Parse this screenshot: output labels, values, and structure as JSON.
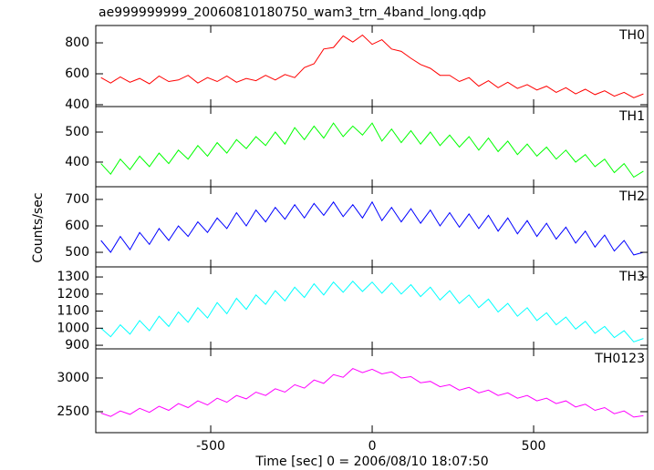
{
  "chart_data": [
    {
      "type": "line",
      "title": "ae999999999_20060810180750_wam3_trn_4band_long.qdp",
      "x": [
        -840,
        -810,
        -780,
        -750,
        -720,
        -690,
        -660,
        -630,
        -600,
        -570,
        -540,
        -510,
        -480,
        -450,
        -420,
        -390,
        -360,
        -330,
        -300,
        -270,
        -240,
        -210,
        -180,
        -150,
        -120,
        -90,
        -60,
        -30,
        0,
        30,
        60,
        90,
        120,
        150,
        180,
        210,
        240,
        270,
        300,
        330,
        360,
        390,
        420,
        450,
        480,
        510,
        540,
        570,
        600,
        630,
        660,
        690,
        720,
        750,
        780,
        810,
        840
      ],
      "series": [
        {
          "name": "TH0",
          "color": "#ff0000",
          "values": [
            575,
            540,
            580,
            545,
            570,
            535,
            585,
            550,
            560,
            590,
            540,
            575,
            550,
            585,
            545,
            570,
            555,
            590,
            560,
            595,
            575,
            640,
            665,
            760,
            770,
            845,
            805,
            850,
            790,
            820,
            760,
            745,
            700,
            660,
            635,
            590,
            590,
            550,
            575,
            520,
            555,
            510,
            545,
            505,
            530,
            495,
            520,
            480,
            510,
            470,
            500,
            465,
            490,
            455,
            480,
            445,
            470
          ]
        }
      ],
      "xlim": [
        -856,
        853
      ],
      "xticks": [
        -500,
        0,
        500
      ],
      "ylim": [
        388,
        912
      ],
      "yticks": [
        400,
        600,
        800
      ]
    },
    {
      "type": "line",
      "x": [
        -840,
        -810,
        -780,
        -750,
        -720,
        -690,
        -660,
        -630,
        -600,
        -570,
        -540,
        -510,
        -480,
        -450,
        -420,
        -390,
        -360,
        -330,
        -300,
        -270,
        -240,
        -210,
        -180,
        -150,
        -120,
        -90,
        -60,
        -30,
        0,
        30,
        60,
        90,
        120,
        150,
        180,
        210,
        240,
        270,
        300,
        330,
        360,
        390,
        420,
        450,
        480,
        510,
        540,
        570,
        600,
        630,
        660,
        690,
        720,
        750,
        780,
        810,
        840
      ],
      "series": [
        {
          "name": "TH1",
          "color": "#00ff00",
          "values": [
            395,
            360,
            410,
            375,
            420,
            385,
            430,
            395,
            440,
            410,
            455,
            420,
            465,
            430,
            475,
            445,
            485,
            455,
            500,
            460,
            515,
            475,
            520,
            480,
            530,
            485,
            520,
            490,
            530,
            470,
            510,
            465,
            505,
            460,
            500,
            455,
            490,
            450,
            485,
            440,
            480,
            435,
            470,
            425,
            460,
            420,
            450,
            410,
            440,
            400,
            425,
            385,
            410,
            365,
            395,
            350,
            370
          ]
        }
      ],
      "xlim": [
        -856,
        853
      ],
      "xticks": [
        -500,
        0,
        500
      ],
      "ylim": [
        318,
        585
      ],
      "yticks": [
        400,
        500
      ]
    },
    {
      "type": "line",
      "ylabel": "Counts/sec",
      "x": [
        -840,
        -810,
        -780,
        -750,
        -720,
        -690,
        -660,
        -630,
        -600,
        -570,
        -540,
        -510,
        -480,
        -450,
        -420,
        -390,
        -360,
        -330,
        -300,
        -270,
        -240,
        -210,
        -180,
        -150,
        -120,
        -90,
        -60,
        -30,
        0,
        30,
        60,
        90,
        120,
        150,
        180,
        210,
        240,
        270,
        300,
        330,
        360,
        390,
        420,
        450,
        480,
        510,
        540,
        570,
        600,
        630,
        660,
        690,
        720,
        750,
        780,
        810,
        840
      ],
      "series": [
        {
          "name": "TH2",
          "color": "#0000ff",
          "values": [
            545,
            500,
            560,
            510,
            575,
            530,
            590,
            545,
            600,
            560,
            615,
            575,
            630,
            590,
            650,
            600,
            660,
            615,
            670,
            625,
            680,
            630,
            685,
            640,
            690,
            635,
            680,
            630,
            690,
            620,
            670,
            615,
            665,
            610,
            660,
            600,
            650,
            595,
            645,
            590,
            640,
            580,
            630,
            570,
            620,
            560,
            610,
            550,
            595,
            535,
            580,
            520,
            565,
            505,
            545,
            490,
            500
          ]
        }
      ],
      "xlim": [
        -856,
        853
      ],
      "xticks": [
        -500,
        0,
        500
      ],
      "ylim": [
        445,
        748
      ],
      "yticks": [
        500,
        600,
        700
      ]
    },
    {
      "type": "line",
      "x": [
        -840,
        -810,
        -780,
        -750,
        -720,
        -690,
        -660,
        -630,
        -600,
        -570,
        -540,
        -510,
        -480,
        -450,
        -420,
        -390,
        -360,
        -330,
        -300,
        -270,
        -240,
        -210,
        -180,
        -150,
        -120,
        -90,
        -60,
        -30,
        0,
        30,
        60,
        90,
        120,
        150,
        180,
        210,
        240,
        270,
        300,
        330,
        360,
        390,
        420,
        450,
        480,
        510,
        540,
        570,
        600,
        630,
        660,
        690,
        720,
        750,
        780,
        810,
        840
      ],
      "series": [
        {
          "name": "TH3",
          "color": "#00ffff",
          "values": [
            1000,
            950,
            1020,
            965,
            1045,
            985,
            1070,
            1010,
            1095,
            1035,
            1120,
            1060,
            1150,
            1085,
            1175,
            1110,
            1195,
            1140,
            1220,
            1160,
            1240,
            1180,
            1260,
            1195,
            1270,
            1210,
            1275,
            1215,
            1270,
            1205,
            1265,
            1200,
            1255,
            1185,
            1240,
            1165,
            1220,
            1145,
            1195,
            1120,
            1170,
            1095,
            1145,
            1070,
            1120,
            1045,
            1090,
            1020,
            1065,
            995,
            1040,
            970,
            1010,
            945,
            985,
            920,
            940
          ]
        }
      ],
      "xlim": [
        -856,
        853
      ],
      "xticks": [
        -500,
        0,
        500
      ],
      "ylim": [
        879,
        1359
      ],
      "yticks": [
        900,
        1000,
        1100,
        1200,
        1300
      ]
    },
    {
      "type": "line",
      "xlabel": "Time [sec] 0 = 2006/08/10 18:07:50",
      "x": [
        -840,
        -810,
        -780,
        -750,
        -720,
        -690,
        -660,
        -630,
        -600,
        -570,
        -540,
        -510,
        -480,
        -450,
        -420,
        -390,
        -360,
        -330,
        -300,
        -270,
        -240,
        -210,
        -180,
        -150,
        -120,
        -90,
        -60,
        -30,
        0,
        30,
        60,
        90,
        120,
        150,
        180,
        210,
        240,
        270,
        300,
        330,
        360,
        390,
        420,
        450,
        480,
        510,
        540,
        570,
        600,
        630,
        660,
        690,
        720,
        750,
        780,
        810,
        840
      ],
      "series": [
        {
          "name": "TH0123",
          "color": "#ff00ff",
          "values": [
            2480,
            2430,
            2510,
            2460,
            2550,
            2490,
            2580,
            2520,
            2620,
            2560,
            2660,
            2600,
            2700,
            2640,
            2740,
            2690,
            2790,
            2740,
            2840,
            2790,
            2900,
            2850,
            2970,
            2920,
            3050,
            3010,
            3140,
            3080,
            3130,
            3060,
            3090,
            3000,
            3020,
            2930,
            2950,
            2870,
            2900,
            2820,
            2860,
            2780,
            2820,
            2740,
            2780,
            2700,
            2740,
            2660,
            2700,
            2620,
            2660,
            2570,
            2610,
            2520,
            2560,
            2470,
            2510,
            2420,
            2440
          ]
        }
      ],
      "xlim": [
        -856,
        853
      ],
      "xticks": [
        -500,
        0,
        500
      ],
      "ylim": [
        2189,
        3432
      ],
      "yticks": [
        2500,
        3000
      ]
    }
  ]
}
